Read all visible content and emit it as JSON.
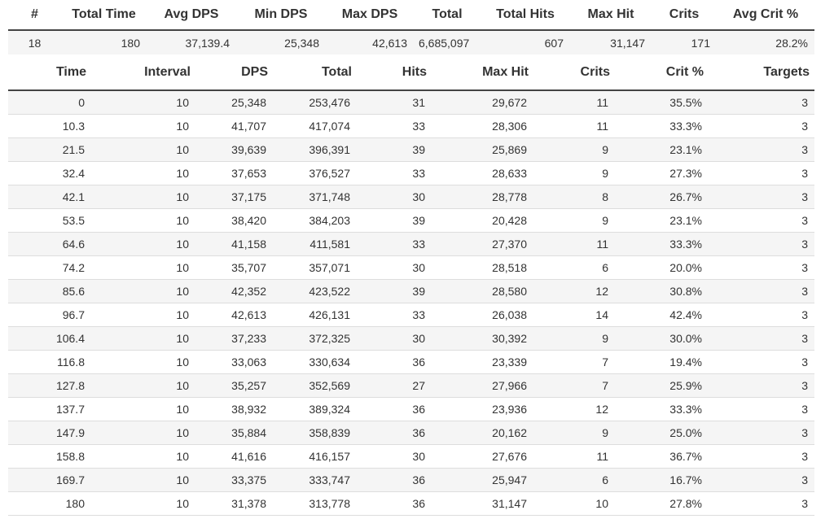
{
  "summary": {
    "headers": [
      "#",
      "Total Time",
      "Avg DPS",
      "Min DPS",
      "Max DPS",
      "Total",
      "Total Hits",
      "Max Hit",
      "Crits",
      "Avg Crit %"
    ],
    "rows": [
      [
        "18",
        "180",
        "37,139.4",
        "25,348",
        "42,613",
        "6,685,097",
        "607",
        "31,147",
        "171",
        "28.2%"
      ]
    ]
  },
  "details": {
    "headers": [
      "Time",
      "Interval",
      "DPS",
      "Total",
      "Hits",
      "Max Hit",
      "Crits",
      "Crit %",
      "Targets"
    ],
    "rows": [
      [
        "0",
        "10",
        "25,348",
        "253,476",
        "31",
        "29,672",
        "11",
        "35.5%",
        "3"
      ],
      [
        "10.3",
        "10",
        "41,707",
        "417,074",
        "33",
        "28,306",
        "11",
        "33.3%",
        "3"
      ],
      [
        "21.5",
        "10",
        "39,639",
        "396,391",
        "39",
        "25,869",
        "9",
        "23.1%",
        "3"
      ],
      [
        "32.4",
        "10",
        "37,653",
        "376,527",
        "33",
        "28,633",
        "9",
        "27.3%",
        "3"
      ],
      [
        "42.1",
        "10",
        "37,175",
        "371,748",
        "30",
        "28,778",
        "8",
        "26.7%",
        "3"
      ],
      [
        "53.5",
        "10",
        "38,420",
        "384,203",
        "39",
        "20,428",
        "9",
        "23.1%",
        "3"
      ],
      [
        "64.6",
        "10",
        "41,158",
        "411,581",
        "33",
        "27,370",
        "11",
        "33.3%",
        "3"
      ],
      [
        "74.2",
        "10",
        "35,707",
        "357,071",
        "30",
        "28,518",
        "6",
        "20.0%",
        "3"
      ],
      [
        "85.6",
        "10",
        "42,352",
        "423,522",
        "39",
        "28,580",
        "12",
        "30.8%",
        "3"
      ],
      [
        "96.7",
        "10",
        "42,613",
        "426,131",
        "33",
        "26,038",
        "14",
        "42.4%",
        "3"
      ],
      [
        "106.4",
        "10",
        "37,233",
        "372,325",
        "30",
        "30,392",
        "9",
        "30.0%",
        "3"
      ],
      [
        "116.8",
        "10",
        "33,063",
        "330,634",
        "36",
        "23,339",
        "7",
        "19.4%",
        "3"
      ],
      [
        "127.8",
        "10",
        "35,257",
        "352,569",
        "27",
        "27,966",
        "7",
        "25.9%",
        "3"
      ],
      [
        "137.7",
        "10",
        "38,932",
        "389,324",
        "36",
        "23,936",
        "12",
        "33.3%",
        "3"
      ],
      [
        "147.9",
        "10",
        "35,884",
        "358,839",
        "36",
        "20,162",
        "9",
        "25.0%",
        "3"
      ],
      [
        "158.8",
        "10",
        "41,616",
        "416,157",
        "30",
        "27,676",
        "11",
        "36.7%",
        "3"
      ],
      [
        "169.7",
        "10",
        "33,375",
        "333,747",
        "36",
        "25,947",
        "6",
        "16.7%",
        "3"
      ],
      [
        "180",
        "10",
        "31,378",
        "313,778",
        "36",
        "31,147",
        "10",
        "27.8%",
        "3"
      ]
    ]
  }
}
